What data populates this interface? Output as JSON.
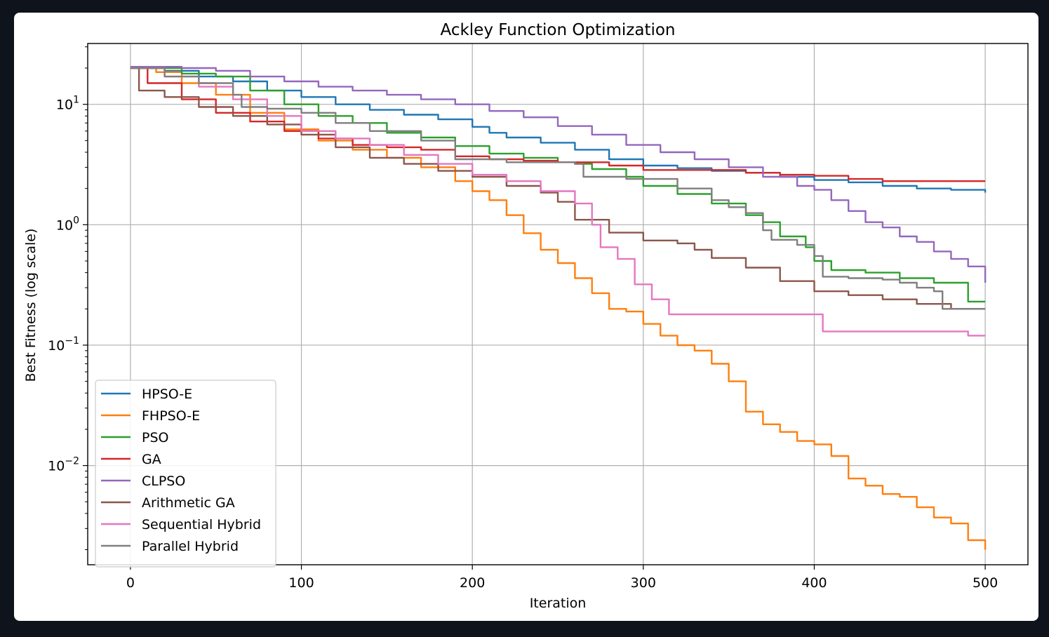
{
  "chart_data": {
    "type": "line",
    "title": "Ackley Function Optimization",
    "xlabel": "Iteration",
    "ylabel": "Best Fitness (log scale)",
    "xlim": [
      -25,
      525
    ],
    "ylim": [
      0.0015,
      32
    ],
    "yscale": "log",
    "grid": true,
    "legend_position": "lower-left",
    "x_ticks": [
      0,
      100,
      200,
      300,
      400,
      500
    ],
    "y_ticks": [
      {
        "value": 10,
        "base": "10",
        "exp": "1"
      },
      {
        "value": 1,
        "base": "10",
        "exp": "0"
      },
      {
        "value": 0.1,
        "base": "10",
        "exp": "−1"
      },
      {
        "value": 0.01,
        "base": "10",
        "exp": "−2"
      }
    ],
    "series": [
      {
        "name": "HPSO-E",
        "color": "#1f77b4",
        "points": [
          [
            0,
            20
          ],
          [
            20,
            19
          ],
          [
            40,
            17
          ],
          [
            60,
            15.5
          ],
          [
            80,
            13
          ],
          [
            100,
            11.5
          ],
          [
            120,
            10
          ],
          [
            140,
            9
          ],
          [
            160,
            8.2
          ],
          [
            180,
            7.5
          ],
          [
            200,
            6.5
          ],
          [
            210,
            5.8
          ],
          [
            220,
            5.3
          ],
          [
            240,
            4.8
          ],
          [
            260,
            4.2
          ],
          [
            280,
            3.5
          ],
          [
            300,
            3.1
          ],
          [
            320,
            2.95
          ],
          [
            340,
            2.8
          ],
          [
            360,
            2.7
          ],
          [
            380,
            2.5
          ],
          [
            400,
            2.35
          ],
          [
            420,
            2.25
          ],
          [
            440,
            2.1
          ],
          [
            460,
            2.0
          ],
          [
            480,
            1.95
          ],
          [
            500,
            1.85
          ]
        ]
      },
      {
        "name": "FHPSO-E",
        "color": "#ff7f0e",
        "points": [
          [
            0,
            20
          ],
          [
            15,
            18.5
          ],
          [
            30,
            15
          ],
          [
            50,
            12
          ],
          [
            70,
            8.5
          ],
          [
            90,
            6.2
          ],
          [
            110,
            5.0
          ],
          [
            130,
            4.2
          ],
          [
            150,
            3.6
          ],
          [
            170,
            3.0
          ],
          [
            190,
            2.3
          ],
          [
            200,
            1.9
          ],
          [
            210,
            1.6
          ],
          [
            220,
            1.2
          ],
          [
            230,
            0.85
          ],
          [
            240,
            0.62
          ],
          [
            250,
            0.48
          ],
          [
            260,
            0.36
          ],
          [
            270,
            0.27
          ],
          [
            280,
            0.2
          ],
          [
            290,
            0.19
          ],
          [
            300,
            0.15
          ],
          [
            310,
            0.12
          ],
          [
            320,
            0.1
          ],
          [
            330,
            0.09
          ],
          [
            340,
            0.07
          ],
          [
            350,
            0.05
          ],
          [
            360,
            0.028
          ],
          [
            370,
            0.022
          ],
          [
            380,
            0.019
          ],
          [
            390,
            0.016
          ],
          [
            400,
            0.015
          ],
          [
            410,
            0.012
          ],
          [
            420,
            0.0078
          ],
          [
            430,
            0.0068
          ],
          [
            440,
            0.0058
          ],
          [
            450,
            0.0055
          ],
          [
            460,
            0.0045
          ],
          [
            470,
            0.0037
          ],
          [
            480,
            0.0033
          ],
          [
            490,
            0.0024
          ],
          [
            500,
            0.002
          ]
        ]
      },
      {
        "name": "PSO",
        "color": "#2ca02c",
        "points": [
          [
            0,
            20
          ],
          [
            30,
            18
          ],
          [
            50,
            17
          ],
          [
            70,
            13
          ],
          [
            90,
            10
          ],
          [
            110,
            8
          ],
          [
            130,
            7
          ],
          [
            150,
            5.8
          ],
          [
            170,
            5.3
          ],
          [
            190,
            4.5
          ],
          [
            210,
            3.9
          ],
          [
            230,
            3.6
          ],
          [
            250,
            3.3
          ],
          [
            260,
            3.2
          ],
          [
            270,
            2.9
          ],
          [
            290,
            2.5
          ],
          [
            300,
            2.1
          ],
          [
            320,
            1.8
          ],
          [
            340,
            1.5
          ],
          [
            360,
            1.2
          ],
          [
            370,
            1.05
          ],
          [
            380,
            0.8
          ],
          [
            395,
            0.65
          ],
          [
            400,
            0.5
          ],
          [
            410,
            0.42
          ],
          [
            430,
            0.4
          ],
          [
            450,
            0.36
          ],
          [
            470,
            0.33
          ],
          [
            490,
            0.23
          ],
          [
            500,
            0.23
          ]
        ]
      },
      {
        "name": "GA",
        "color": "#d62728",
        "points": [
          [
            0,
            20
          ],
          [
            10,
            15
          ],
          [
            30,
            11
          ],
          [
            50,
            8.5
          ],
          [
            70,
            7.2
          ],
          [
            90,
            6.0
          ],
          [
            110,
            5.2
          ],
          [
            130,
            4.6
          ],
          [
            150,
            4.4
          ],
          [
            170,
            4.2
          ],
          [
            190,
            3.7
          ],
          [
            210,
            3.5
          ],
          [
            230,
            3.4
          ],
          [
            250,
            3.3
          ],
          [
            280,
            3.1
          ],
          [
            300,
            2.85
          ],
          [
            340,
            2.85
          ],
          [
            360,
            2.7
          ],
          [
            380,
            2.6
          ],
          [
            400,
            2.55
          ],
          [
            420,
            2.4
          ],
          [
            440,
            2.3
          ],
          [
            500,
            2.3
          ]
        ]
      },
      {
        "name": "CLPSO",
        "color": "#9467bd",
        "points": [
          [
            0,
            20.5
          ],
          [
            30,
            20
          ],
          [
            50,
            19
          ],
          [
            70,
            17
          ],
          [
            90,
            15.5
          ],
          [
            110,
            14
          ],
          [
            130,
            13
          ],
          [
            150,
            12
          ],
          [
            170,
            11
          ],
          [
            190,
            10
          ],
          [
            210,
            8.8
          ],
          [
            230,
            7.8
          ],
          [
            250,
            6.6
          ],
          [
            270,
            5.6
          ],
          [
            290,
            4.6
          ],
          [
            310,
            4.0
          ],
          [
            330,
            3.5
          ],
          [
            350,
            3.0
          ],
          [
            370,
            2.5
          ],
          [
            390,
            2.1
          ],
          [
            400,
            1.95
          ],
          [
            410,
            1.6
          ],
          [
            420,
            1.3
          ],
          [
            430,
            1.05
          ],
          [
            440,
            0.95
          ],
          [
            450,
            0.8
          ],
          [
            460,
            0.72
          ],
          [
            470,
            0.6
          ],
          [
            480,
            0.52
          ],
          [
            490,
            0.45
          ],
          [
            500,
            0.33
          ]
        ]
      },
      {
        "name": "Arithmetic GA",
        "color": "#8c564b",
        "points": [
          [
            0,
            20
          ],
          [
            5,
            13
          ],
          [
            20,
            11.5
          ],
          [
            40,
            9.5
          ],
          [
            60,
            8.0
          ],
          [
            80,
            6.8
          ],
          [
            100,
            5.6
          ],
          [
            120,
            4.4
          ],
          [
            140,
            3.6
          ],
          [
            160,
            3.2
          ],
          [
            180,
            2.8
          ],
          [
            200,
            2.5
          ],
          [
            220,
            2.1
          ],
          [
            240,
            1.85
          ],
          [
            250,
            1.55
          ],
          [
            260,
            1.1
          ],
          [
            280,
            0.86
          ],
          [
            300,
            0.74
          ],
          [
            320,
            0.7
          ],
          [
            330,
            0.62
          ],
          [
            340,
            0.53
          ],
          [
            360,
            0.44
          ],
          [
            380,
            0.34
          ],
          [
            400,
            0.28
          ],
          [
            420,
            0.26
          ],
          [
            440,
            0.24
          ],
          [
            460,
            0.22
          ],
          [
            480,
            0.2
          ],
          [
            500,
            0.2
          ]
        ]
      },
      {
        "name": "Sequential Hybrid",
        "color": "#e377c2",
        "points": [
          [
            0,
            20
          ],
          [
            20,
            17
          ],
          [
            40,
            14
          ],
          [
            60,
            11
          ],
          [
            80,
            8
          ],
          [
            100,
            6.0
          ],
          [
            120,
            5.2
          ],
          [
            140,
            4.6
          ],
          [
            160,
            3.8
          ],
          [
            180,
            3.2
          ],
          [
            200,
            2.6
          ],
          [
            220,
            2.3
          ],
          [
            240,
            1.9
          ],
          [
            260,
            1.5
          ],
          [
            270,
            1.0
          ],
          [
            275,
            0.65
          ],
          [
            285,
            0.52
          ],
          [
            295,
            0.32
          ],
          [
            305,
            0.24
          ],
          [
            315,
            0.18
          ],
          [
            400,
            0.18
          ],
          [
            405,
            0.13
          ],
          [
            480,
            0.13
          ],
          [
            490,
            0.12
          ],
          [
            500,
            0.12
          ]
        ]
      },
      {
        "name": "Parallel Hybrid",
        "color": "#7f7f7f",
        "points": [
          [
            0,
            20
          ],
          [
            20,
            17
          ],
          [
            40,
            15
          ],
          [
            60,
            12
          ],
          [
            65,
            9.5
          ],
          [
            80,
            9.2
          ],
          [
            100,
            8.5
          ],
          [
            120,
            7
          ],
          [
            140,
            6
          ],
          [
            170,
            5.0
          ],
          [
            190,
            3.5
          ],
          [
            220,
            3.3
          ],
          [
            240,
            3.3
          ],
          [
            260,
            3.2
          ],
          [
            265,
            2.5
          ],
          [
            290,
            2.4
          ],
          [
            310,
            2.4
          ],
          [
            320,
            2.0
          ],
          [
            340,
            1.6
          ],
          [
            350,
            1.4
          ],
          [
            360,
            1.25
          ],
          [
            370,
            0.9
          ],
          [
            375,
            0.75
          ],
          [
            390,
            0.68
          ],
          [
            400,
            0.55
          ],
          [
            405,
            0.37
          ],
          [
            420,
            0.36
          ],
          [
            440,
            0.35
          ],
          [
            450,
            0.33
          ],
          [
            460,
            0.3
          ],
          [
            470,
            0.28
          ],
          [
            475,
            0.2
          ],
          [
            500,
            0.2
          ]
        ]
      }
    ]
  }
}
